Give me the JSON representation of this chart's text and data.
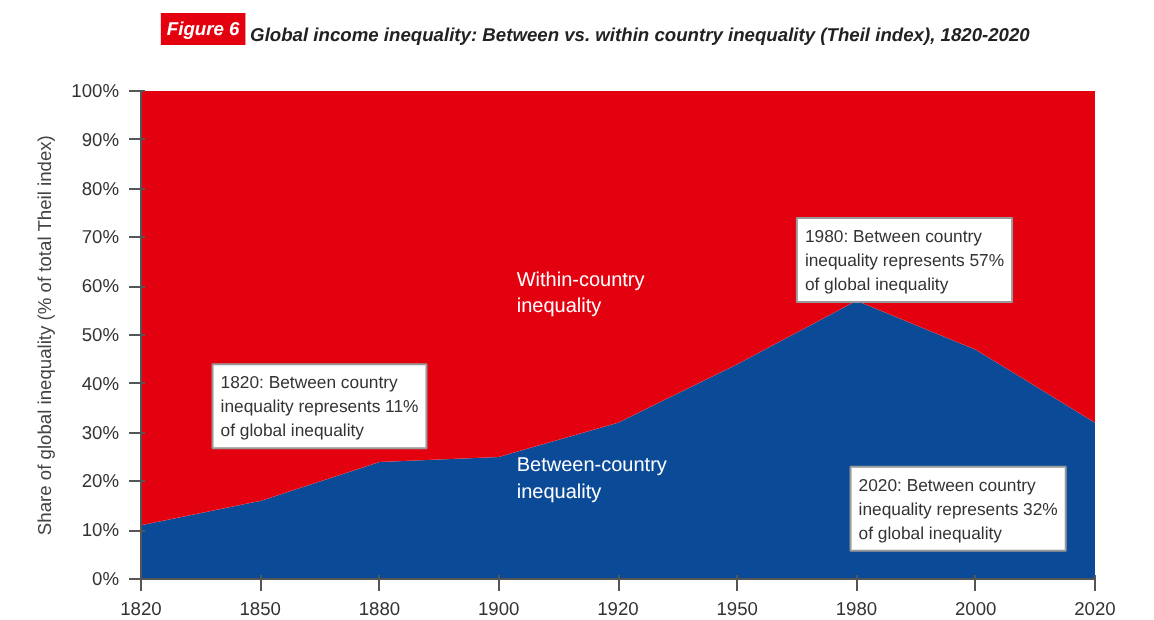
{
  "chart_data": {
    "type": "area",
    "stacked": true,
    "title": "Figure 6",
    "subtitle": "Global income inequality: Between vs. within country inequality (Theil index), 1820-2020",
    "ylabel": "Share of global inequality (% of total Theil index)",
    "categories": [
      "1820",
      "1850",
      "1880",
      "1900",
      "1920",
      "1950",
      "1980",
      "2000",
      "2020"
    ],
    "series": [
      {
        "name": "Between-country inequality",
        "color": "#0b4a96",
        "values": [
          11,
          16,
          24,
          25,
          32,
          44,
          57,
          47,
          32
        ]
      },
      {
        "name": "Within-country inequality",
        "color": "#e3000f",
        "values": [
          89,
          84,
          76,
          75,
          68,
          56,
          43,
          53,
          68
        ]
      }
    ],
    "ylim": [
      0,
      100
    ],
    "yticks": [
      {
        "value": 0,
        "label": "0%"
      },
      {
        "value": 10,
        "label": "10%"
      },
      {
        "value": 20,
        "label": "20%"
      },
      {
        "value": 30,
        "label": "30%"
      },
      {
        "value": 40,
        "label": "40%"
      },
      {
        "value": 50,
        "label": "50%"
      },
      {
        "value": 60,
        "label": "60%"
      },
      {
        "value": 70,
        "label": "70%"
      },
      {
        "value": 80,
        "label": "80%"
      },
      {
        "value": 90,
        "label": "90%"
      },
      {
        "value": 100,
        "label": "100%"
      }
    ],
    "annotations": [
      "1820: Between country\ninequality represents 11%\nof global inequality",
      "1980: Between country\ninequality represents 57%\nof global inequality",
      "2020: Between country\ninequality represents 32%\nof global inequality"
    ],
    "grid": false
  }
}
